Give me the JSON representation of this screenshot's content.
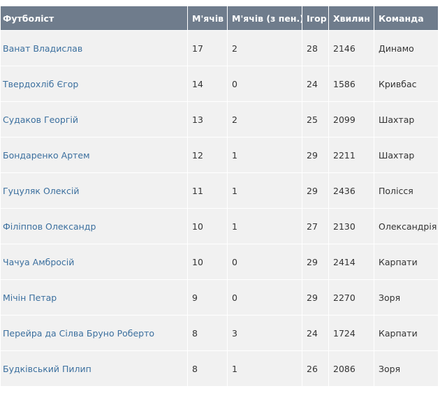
{
  "table": {
    "headers": [
      "Футболіст",
      "М'ячів",
      "М'ячів (з пен.)",
      "Ігор",
      "Хвилин",
      "Команда"
    ],
    "rows": [
      [
        "Ванат Владислав",
        17,
        2,
        28,
        2146,
        "Динамо"
      ],
      [
        "Твердохліб Єгор",
        14,
        0,
        24,
        1586,
        "Кривбас"
      ],
      [
        "Судаков Георгій",
        13,
        2,
        25,
        2099,
        "Шахтар"
      ],
      [
        "Бондаренко Артем",
        12,
        1,
        29,
        2211,
        "Шахтар"
      ],
      [
        "Гуцуляк Олексій",
        11,
        1,
        29,
        2436,
        "Полісся"
      ],
      [
        "Філіппов Олександр",
        10,
        1,
        27,
        2130,
        "Олександрія"
      ],
      [
        "Чачуа Амбросій",
        10,
        0,
        29,
        2414,
        "Карпати"
      ],
      [
        "Мічін Петар",
        9,
        0,
        29,
        2270,
        "Зоря"
      ],
      [
        "Перейра да Сілва Бруно Роберто",
        8,
        3,
        24,
        1724,
        "Карпати"
      ],
      [
        "Будківський Пилип",
        8,
        1,
        26,
        2086,
        "Зоря"
      ]
    ]
  }
}
